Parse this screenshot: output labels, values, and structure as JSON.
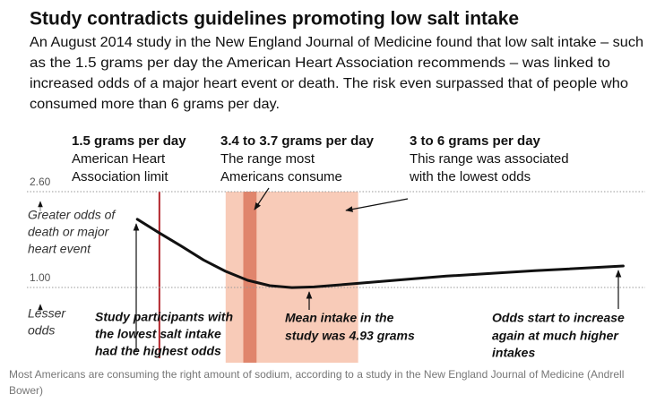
{
  "chart_data": {
    "type": "line",
    "title": "Study contradicts guidelines promoting low salt intake",
    "subtitle": [
      "An August 2014 study in the New England Journal of Medicine found that low salt intake – such",
      "as the 1.5 grams per day the American Heart Association recommends – was linked to",
      "increased odds of a major heart event or death. The risk even surpassed that of people who",
      "consumed more than 6 grams per day."
    ],
    "top_annotations": [
      {
        "heading": "1.5 grams per day",
        "lines": [
          "American Heart",
          "Association limit"
        ]
      },
      {
        "heading": "3.4 to 3.7 grams per day",
        "lines": [
          "The range most",
          "Americans consume"
        ]
      },
      {
        "heading": "3 to 6 grams per day",
        "lines": [
          "This range was associated",
          "with the lowest odds"
        ]
      }
    ],
    "y_notes": [
      {
        "lines": [
          "Greater odds of",
          "death or major",
          "heart event"
        ]
      },
      {
        "lines": [
          "Lesser",
          "odds"
        ]
      }
    ],
    "bottom_annotations": [
      [
        "Study participants with",
        "the lowest salt intake",
        "had the highest odds"
      ],
      [
        "Mean intake in the",
        "study was 4.93 grams"
      ],
      [
        "Odds start to increase",
        "again at much higher",
        "intakes"
      ]
    ],
    "caption": [
      "Most Americans are consuming the right amount of sodium, according to a study in the New England Journal of Medicine (Andrell",
      "Bower)"
    ],
    "x": [
      1,
      1.5,
      2,
      2.5,
      3,
      3.5,
      4,
      4.5,
      5,
      6,
      8,
      10,
      12
    ],
    "values": [
      2.14,
      1.91,
      1.69,
      1.46,
      1.27,
      1.12,
      1.03,
      1.0,
      1.01,
      1.07,
      1.19,
      1.28,
      1.36
    ],
    "color": "#111111",
    "xlim": [
      -1.5,
      12.5
    ],
    "ylim": [
      -0.6,
      2.6
    ],
    "yticks": [
      {
        "value": 1,
        "label": "1.00"
      },
      {
        "value": 2.6,
        "label": "2.60"
      }
    ],
    "grid": true,
    "bands": [
      {
        "from": 3,
        "to": 6,
        "color": "#f8cbb8"
      },
      {
        "from": 3.4,
        "to": 3.7,
        "color": "#e0856c"
      }
    ],
    "reference_lines": [
      {
        "x": 1.5,
        "color": "#b3262d"
      }
    ]
  }
}
